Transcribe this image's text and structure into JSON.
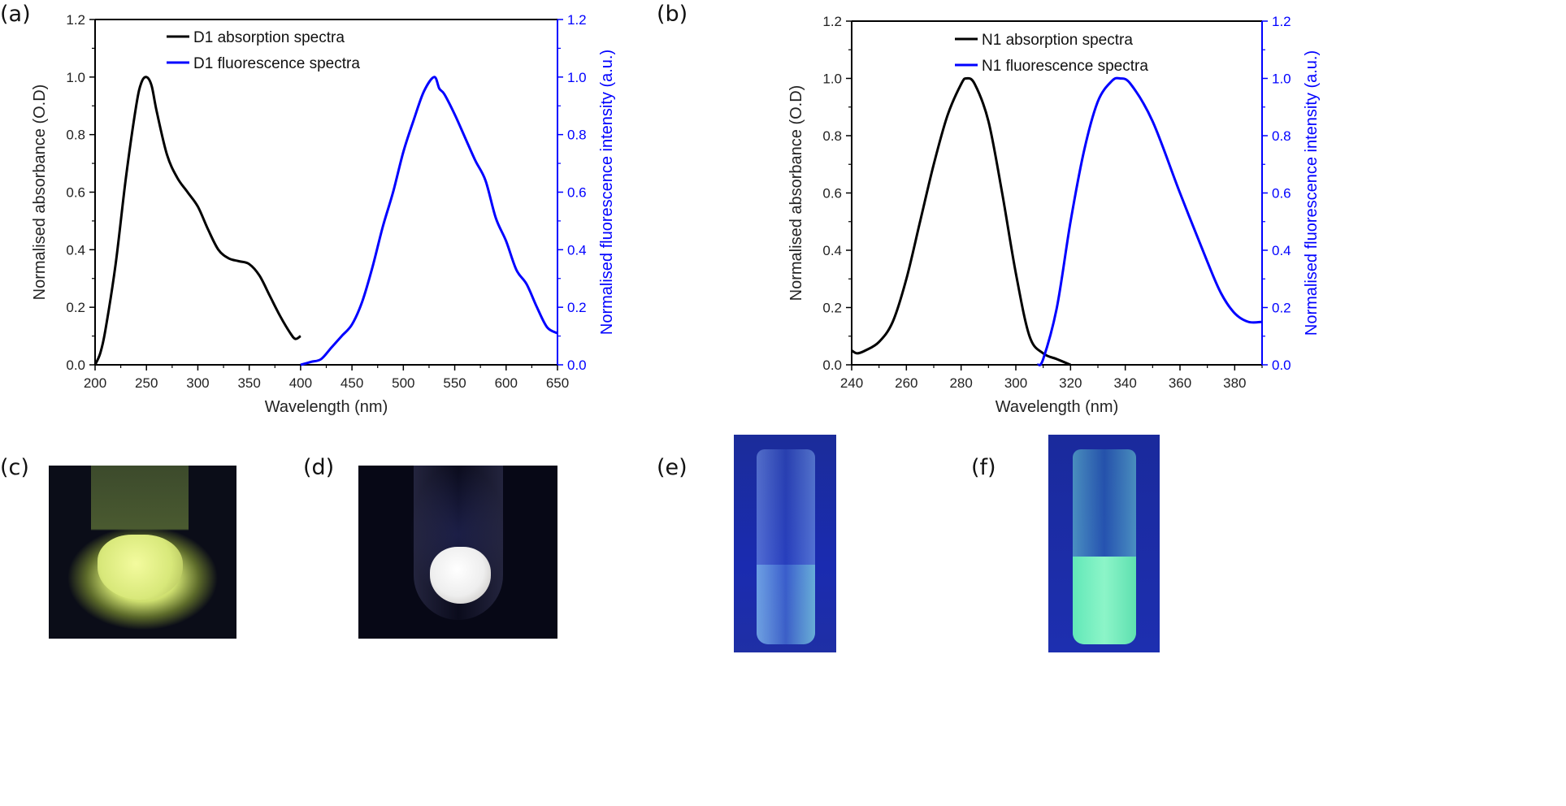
{
  "panels": {
    "a": "(a)",
    "b": "(b)",
    "c": "(c)",
    "d": "(d)",
    "e": "(e)",
    "f": "(f)"
  },
  "chart_data": [
    {
      "type": "line",
      "panel": "(a)",
      "xlabel": "Wavelength (nm)",
      "ylabel": "Normalised absorbance (O.D)",
      "y2label": "Normalised fluorescence intensity (a.u.)",
      "xlim": [
        200,
        650
      ],
      "ylim": [
        0,
        1.2
      ],
      "y2lim": [
        0,
        1.2
      ],
      "xticks": [
        200,
        250,
        300,
        350,
        400,
        450,
        500,
        550,
        600,
        650
      ],
      "yticks": [
        0.0,
        0.2,
        0.4,
        0.6,
        0.8,
        1.0,
        1.2
      ],
      "legend": "top-center",
      "series": [
        {
          "name": "D1 absorption spectra",
          "color": "#000000",
          "axis": "left",
          "x": [
            200,
            205,
            210,
            220,
            230,
            240,
            245,
            250,
            255,
            260,
            270,
            280,
            290,
            300,
            310,
            320,
            330,
            340,
            350,
            360,
            370,
            380,
            390,
            395,
            400
          ],
          "y": [
            0,
            0.04,
            0.12,
            0.35,
            0.65,
            0.9,
            0.98,
            1.0,
            0.97,
            0.88,
            0.73,
            0.65,
            0.6,
            0.55,
            0.47,
            0.4,
            0.37,
            0.36,
            0.35,
            0.31,
            0.24,
            0.17,
            0.11,
            0.09,
            0.1
          ]
        },
        {
          "name": "D1 fluorescence spectra",
          "color": "#0000ff",
          "axis": "right",
          "x": [
            400,
            410,
            420,
            430,
            440,
            450,
            460,
            470,
            480,
            490,
            500,
            510,
            520,
            530,
            535,
            540,
            550,
            560,
            570,
            580,
            590,
            600,
            610,
            620,
            630,
            640,
            650
          ],
          "y": [
            0,
            0.01,
            0.02,
            0.06,
            0.1,
            0.14,
            0.22,
            0.34,
            0.48,
            0.6,
            0.74,
            0.85,
            0.95,
            1.0,
            0.96,
            0.94,
            0.87,
            0.79,
            0.71,
            0.64,
            0.51,
            0.43,
            0.33,
            0.28,
            0.2,
            0.13,
            0.11
          ]
        }
      ]
    },
    {
      "type": "line",
      "panel": "(b)",
      "xlabel": "Wavelength (nm)",
      "ylabel": "Normalised absorbance (O.D)",
      "y2label": "Normalised fluorescence intensity (a.u.)",
      "xlim": [
        240,
        390
      ],
      "ylim": [
        0,
        1.2
      ],
      "y2lim": [
        0,
        1.2
      ],
      "xticks": [
        240,
        260,
        280,
        300,
        320,
        340,
        360,
        380
      ],
      "yticks": [
        0.0,
        0.2,
        0.4,
        0.6,
        0.8,
        1.0,
        1.2
      ],
      "legend": "top-center",
      "series": [
        {
          "name": "N1 absorption spectra",
          "color": "#000000",
          "axis": "left",
          "x": [
            240,
            242,
            245,
            250,
            255,
            260,
            265,
            270,
            275,
            280,
            282,
            285,
            290,
            295,
            300,
            305,
            310,
            315,
            320
          ],
          "y": [
            0.05,
            0.04,
            0.05,
            0.08,
            0.15,
            0.3,
            0.5,
            0.7,
            0.87,
            0.98,
            1.0,
            0.98,
            0.85,
            0.6,
            0.32,
            0.1,
            0.04,
            0.02,
            0.0
          ]
        },
        {
          "name": "N1 fluorescence spectra",
          "color": "#0000ff",
          "axis": "right",
          "x": [
            308,
            310,
            315,
            320,
            325,
            330,
            335,
            338,
            342,
            350,
            360,
            370,
            375,
            380,
            385,
            390
          ],
          "y": [
            0,
            0.02,
            0.2,
            0.5,
            0.75,
            0.92,
            0.99,
            1.0,
            0.98,
            0.85,
            0.6,
            0.36,
            0.25,
            0.18,
            0.15,
            0.15
          ]
        }
      ]
    }
  ]
}
